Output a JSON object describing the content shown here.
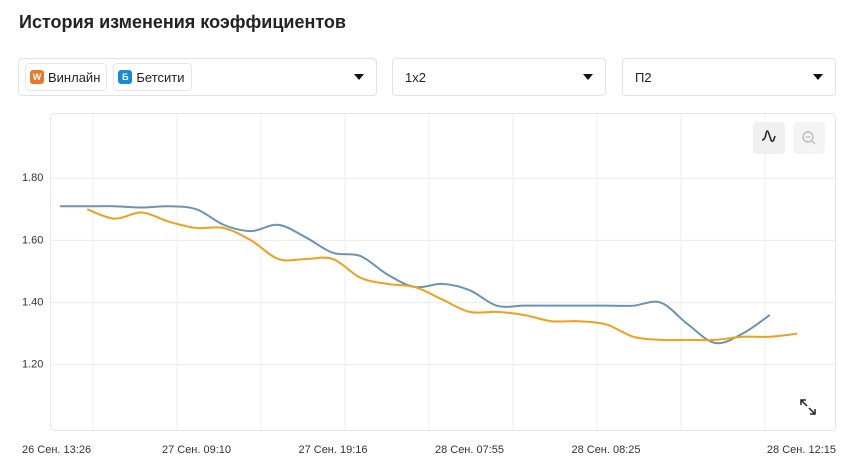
{
  "title": "История изменения коэффициентов",
  "selectors": {
    "bookmaker_icons": [
      "W",
      "Б"
    ],
    "market": "1х2",
    "outcome": "П2"
  },
  "chart_data": {
    "type": "line",
    "categories": [
      "26 Сен. 13:26",
      null,
      null,
      null,
      null,
      "27 Сен. 09:10",
      null,
      null,
      null,
      null,
      "27 Сен. 19:16",
      null,
      null,
      null,
      null,
      "28 Сен. 07:55",
      null,
      null,
      null,
      null,
      "28 Сен. 08:25",
      null,
      null,
      null,
      null,
      null,
      null,
      "28 Сен. 12:15"
    ],
    "series": [
      {
        "name": "Бетсити",
        "color": "#6b93b5",
        "values": [
          1.71,
          1.71,
          1.71,
          1.706,
          1.71,
          1.7,
          1.65,
          1.63,
          1.65,
          1.61,
          1.56,
          1.55,
          1.49,
          1.45,
          1.46,
          1.44,
          1.39,
          1.39,
          1.39,
          1.39,
          1.39,
          1.39,
          1.4,
          1.33,
          1.27,
          1.3,
          1.36,
          null
        ]
      },
      {
        "name": "Винлайн",
        "color": "#f0a01e",
        "values": [
          null,
          1.7,
          1.67,
          1.69,
          1.66,
          1.64,
          1.64,
          1.6,
          1.54,
          1.54,
          1.54,
          1.48,
          1.46,
          1.45,
          1.41,
          1.37,
          1.37,
          1.36,
          1.34,
          1.34,
          1.33,
          1.29,
          1.28,
          1.28,
          1.28,
          1.29,
          1.29,
          1.3
        ]
      }
    ],
    "ylim": [
      0.99,
      2.01
    ],
    "yticks": [
      {
        "value": 1.2,
        "label": "1.20"
      },
      {
        "value": 1.4,
        "label": "1.40"
      },
      {
        "value": 1.6,
        "label": "1.60"
      },
      {
        "value": 1.8,
        "label": "1.80"
      }
    ],
    "grid": true
  }
}
